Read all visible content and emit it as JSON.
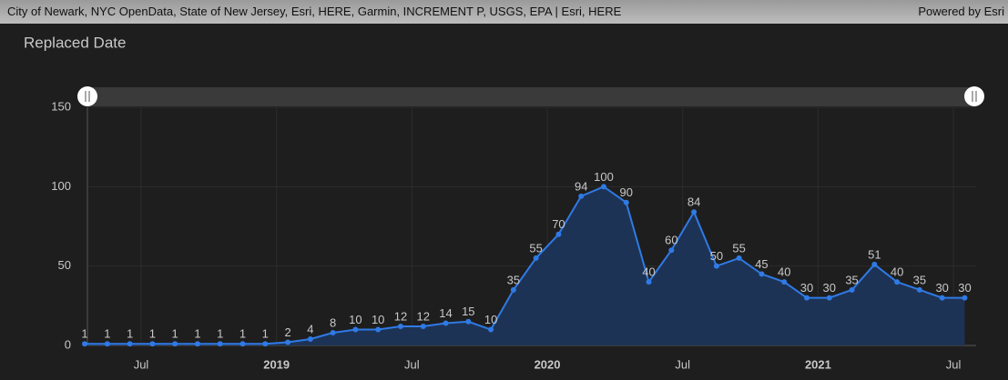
{
  "attribution": "City of Newark, NYC OpenData, State of New Jersey, Esri, HERE, Garmin, INCREMENT P, USGS, EPA | Esri, HERE",
  "powered_by": "Powered by Esri",
  "chart_data": {
    "type": "line",
    "title": "Replaced Date",
    "x": [
      "2018-04",
      "2018-05",
      "2018-06",
      "2018-07",
      "2018-08",
      "2018-09",
      "2018-10",
      "2018-11",
      "2018-12",
      "2019-01",
      "2019-02",
      "2019-03",
      "2019-04",
      "2019-05",
      "2019-06",
      "2019-07",
      "2019-08",
      "2019-09",
      "2019-10",
      "2019-11",
      "2019-12",
      "2020-01",
      "2020-02",
      "2020-03",
      "2020-04",
      "2020-05",
      "2020-06",
      "2020-07",
      "2020-08",
      "2020-09",
      "2020-10",
      "2020-11",
      "2020-12",
      "2021-01",
      "2021-02",
      "2021-03",
      "2021-04",
      "2021-05",
      "2021-06",
      "2021-07"
    ],
    "values": [
      1,
      1,
      1,
      1,
      1,
      1,
      1,
      1,
      1,
      2,
      4,
      8,
      10,
      10,
      12,
      12,
      14,
      15,
      10,
      35,
      55,
      70,
      94,
      100,
      90,
      40,
      60,
      84,
      50,
      55,
      45,
      40,
      30,
      30,
      35,
      51,
      40,
      35,
      30,
      30
    ],
    "color": "#2f7ae5",
    "area_color": "#1d3355",
    "label_color": "#c8c8c8",
    "ylim": [
      0,
      150
    ],
    "yticks": [
      0,
      50,
      100,
      150
    ],
    "xticks": [
      {
        "value": "2018-07",
        "label": "Jul"
      },
      {
        "value": "2019-01",
        "label": "2019"
      },
      {
        "value": "2019-07",
        "label": "Jul"
      },
      {
        "value": "2020-01",
        "label": "2020"
      },
      {
        "value": "2020-07",
        "label": "Jul"
      },
      {
        "value": "2021-01",
        "label": "2021"
      },
      {
        "value": "2021-07",
        "label": "Jul"
      }
    ],
    "grid": true
  }
}
